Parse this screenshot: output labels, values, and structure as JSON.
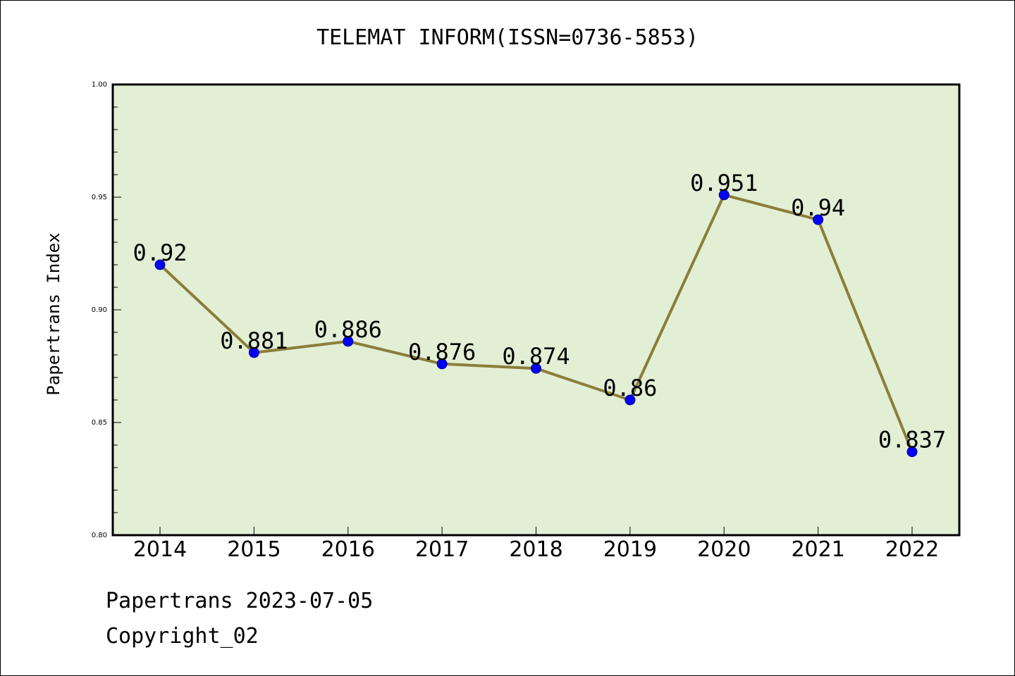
{
  "chart_data": {
    "type": "line",
    "title": "TELEMAT INFORM(ISSN=0736-5853)",
    "xlabel": "",
    "ylabel": "Papertrans Index",
    "categories": [
      "2014",
      "2015",
      "2016",
      "2017",
      "2018",
      "2019",
      "2020",
      "2021",
      "2022"
    ],
    "series": [
      {
        "values": [
          0.92,
          0.881,
          0.886,
          0.876,
          0.874,
          0.86,
          0.951,
          0.94,
          0.837
        ],
        "labels": [
          "0.92",
          "0.881",
          "0.886",
          "0.876",
          "0.874",
          "0.86",
          "0.951",
          "0.94",
          "0.837"
        ]
      }
    ],
    "ylim": [
      0.8,
      1.0
    ],
    "yticks": [
      "0.80",
      "0.85",
      "0.90",
      "0.95",
      "1.00"
    ],
    "yticks_values": [
      0.8,
      0.85,
      0.9,
      0.95,
      1.0
    ],
    "grid": false,
    "legend": "none"
  },
  "footer": {
    "date_line": "Papertrans 2023-07-05",
    "copyright_line": "Copyright_02"
  },
  "colors": {
    "plot_background": "#e2efd5",
    "line": "#8b7d3a",
    "marker": "#0000ff",
    "axis": "#000000"
  }
}
